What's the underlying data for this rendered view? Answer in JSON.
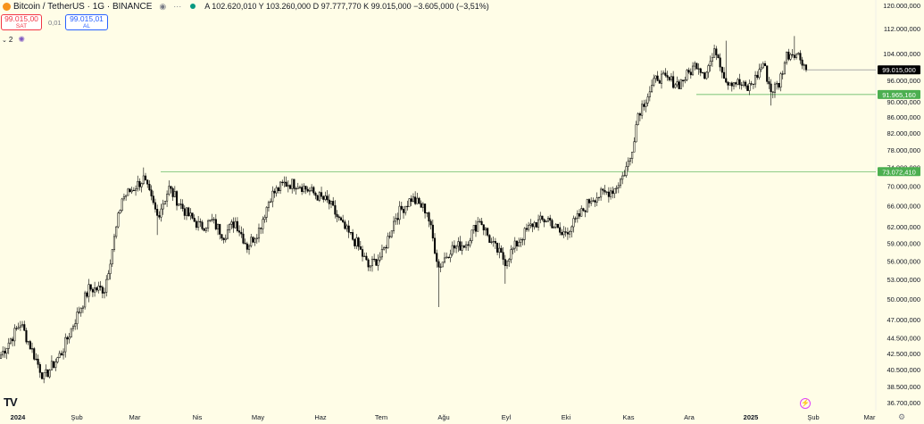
{
  "header": {
    "symbol": "Bitcoin / TetherUS · 1G · BINANCE",
    "ohlc": "A 102.620,010 Y 103.260,000 D 97.777,770 K 99.015,000 −3.605,000 (−3,51%)"
  },
  "trade": {
    "sell_price": "99.015,00",
    "sell_label": "SAT",
    "spread": "0,01",
    "buy_price": "99.015,01",
    "buy_label": "AL"
  },
  "indicators": {
    "count": "2"
  },
  "icons": [
    "bitcoin-icon",
    "eye-icon",
    "more-icon",
    "live-icon",
    "chevron-down-icon",
    "indicator-settings-icon",
    "tradingview-logo-icon",
    "bolt-icon",
    "settings-icon"
  ],
  "colors": {
    "background": "#fffde7",
    "candle": "#000000",
    "price_label": "#000000",
    "level_line": "#4caf50"
  },
  "chart_data": {
    "type": "candlestick",
    "title": "Bitcoin / TetherUS · 1G · BINANCE",
    "y_scale": "log",
    "ylim": [
      36700000,
      120000000
    ],
    "y_ticks": [
      {
        "value": 120000000,
        "label": "120.000,000"
      },
      {
        "value": 112000000,
        "label": "112.000,000"
      },
      {
        "value": 104000000,
        "label": "104.000,000"
      },
      {
        "value": 96000000,
        "label": "96.000,000"
      },
      {
        "value": 90000000,
        "label": "90.000,000"
      },
      {
        "value": 86000000,
        "label": "86.000,000"
      },
      {
        "value": 82000000,
        "label": "82.000,000"
      },
      {
        "value": 78000000,
        "label": "78.000,000"
      },
      {
        "value": 74000000,
        "label": "74.000,000"
      },
      {
        "value": 70000000,
        "label": "70.000,000"
      },
      {
        "value": 66000000,
        "label": "66.000,000"
      },
      {
        "value": 62000000,
        "label": "62.000,000"
      },
      {
        "value": 59000000,
        "label": "59.000,000"
      },
      {
        "value": 56000000,
        "label": "56.000,000"
      },
      {
        "value": 53000000,
        "label": "53.000,000"
      },
      {
        "value": 50000000,
        "label": "50.000,000"
      },
      {
        "value": 47000000,
        "label": "47.000,000"
      },
      {
        "value": 44500000,
        "label": "44.500,000"
      },
      {
        "value": 42500000,
        "label": "42.500,000"
      },
      {
        "value": 40500000,
        "label": "40.500,000"
      },
      {
        "value": 38500000,
        "label": "38.500,000"
      },
      {
        "value": 36700000,
        "label": "36.700,000"
      }
    ],
    "x_ticks": [
      {
        "label": "2024",
        "bold": true
      },
      {
        "label": "Şub"
      },
      {
        "label": "Mar"
      },
      {
        "label": "Nis"
      },
      {
        "label": "May"
      },
      {
        "label": "Haz"
      },
      {
        "label": "Tem"
      },
      {
        "label": "Ağu"
      },
      {
        "label": "Eyl"
      },
      {
        "label": "Eki"
      },
      {
        "label": "Kas"
      },
      {
        "label": "Ara"
      },
      {
        "label": "2025",
        "bold": true
      },
      {
        "label": "Şub"
      },
      {
        "label": "Mar"
      }
    ],
    "levels": [
      {
        "value": 99015000,
        "label": "99.015,000",
        "style": "price"
      },
      {
        "value": 91965160,
        "label": "91.965,160",
        "style": "level"
      },
      {
        "value": 73072410,
        "label": "73.072,410",
        "style": "level"
      }
    ],
    "series_anchors": [
      {
        "day": 0,
        "close": 42300000
      },
      {
        "day": 10,
        "close": 46500000
      },
      {
        "day": 22,
        "close": 39500000
      },
      {
        "day": 31,
        "close": 42600000
      },
      {
        "day": 38,
        "close": 47000000
      },
      {
        "day": 45,
        "close": 51500000
      },
      {
        "day": 53,
        "close": 51500000
      },
      {
        "day": 62,
        "close": 67500000
      },
      {
        "day": 73,
        "close": 71500000
      },
      {
        "day": 80,
        "close": 64000000
      },
      {
        "day": 86,
        "close": 69500000
      },
      {
        "day": 95,
        "close": 64500000
      },
      {
        "day": 102,
        "close": 62000000
      },
      {
        "day": 108,
        "close": 63000000
      },
      {
        "day": 114,
        "close": 60500000
      },
      {
        "day": 120,
        "close": 63000000
      },
      {
        "day": 126,
        "close": 58500000
      },
      {
        "day": 132,
        "close": 61500000
      },
      {
        "day": 138,
        "close": 68000000
      },
      {
        "day": 145,
        "close": 70500000
      },
      {
        "day": 152,
        "close": 70500000
      },
      {
        "day": 160,
        "close": 68500000
      },
      {
        "day": 168,
        "close": 66500000
      },
      {
        "day": 175,
        "close": 62000000
      },
      {
        "day": 182,
        "close": 59000000
      },
      {
        "day": 188,
        "close": 55000000
      },
      {
        "day": 195,
        "close": 57000000
      },
      {
        "day": 202,
        "close": 64000000
      },
      {
        "day": 210,
        "close": 67500000
      },
      {
        "day": 218,
        "close": 65000000
      },
      {
        "day": 224,
        "close": 55000000
      },
      {
        "day": 230,
        "close": 58000000
      },
      {
        "day": 238,
        "close": 59000000
      },
      {
        "day": 245,
        "close": 63500000
      },
      {
        "day": 251,
        "close": 59000000
      },
      {
        "day": 258,
        "close": 56000000
      },
      {
        "day": 266,
        "close": 60000000
      },
      {
        "day": 272,
        "close": 62500000
      },
      {
        "day": 280,
        "close": 63500000
      },
      {
        "day": 287,
        "close": 60500000
      },
      {
        "day": 294,
        "close": 63000000
      },
      {
        "day": 302,
        "close": 67500000
      },
      {
        "day": 309,
        "close": 68500000
      },
      {
        "day": 314,
        "close": 69500000
      },
      {
        "day": 318,
        "close": 72000000
      },
      {
        "day": 322,
        "close": 76000000
      },
      {
        "day": 326,
        "close": 87000000
      },
      {
        "day": 330,
        "close": 91000000
      },
      {
        "day": 336,
        "close": 97000000
      },
      {
        "day": 341,
        "close": 96000000
      },
      {
        "day": 347,
        "close": 95000000
      },
      {
        "day": 352,
        "close": 98000000
      },
      {
        "day": 356,
        "close": 101000000
      },
      {
        "day": 360,
        "close": 98000000
      },
      {
        "day": 366,
        "close": 105000000
      },
      {
        "day": 371,
        "close": 96000000
      },
      {
        "day": 376,
        "close": 95500000
      },
      {
        "day": 382,
        "close": 93500000
      },
      {
        "day": 386,
        "close": 96500000
      },
      {
        "day": 390,
        "close": 101000000
      },
      {
        "day": 394,
        "close": 93000000
      },
      {
        "day": 398,
        "close": 95000000
      },
      {
        "day": 402,
        "close": 103500000
      },
      {
        "day": 406,
        "close": 104500000
      },
      {
        "day": 410,
        "close": 102000000
      },
      {
        "day": 412,
        "close": 99015000
      }
    ]
  }
}
